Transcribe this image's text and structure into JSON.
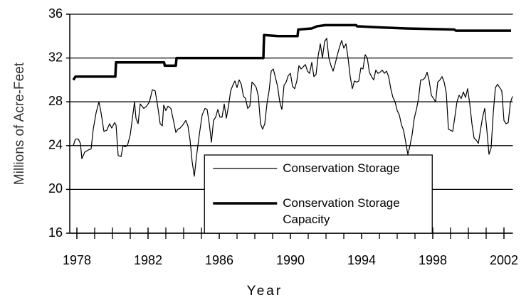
{
  "chart_data": {
    "type": "line",
    "xlabel": "Year",
    "ylabel": "Millions of Acre-Feet",
    "xlim": [
      1977.6,
      2002.5
    ],
    "xticks": [
      1978,
      1982,
      1986,
      1990,
      1994,
      1998,
      2002
    ],
    "xminorticks": [
      1979,
      1980,
      1981,
      1983,
      1984,
      1985,
      1987,
      1988,
      1989,
      1991,
      1992,
      1993,
      1995,
      1996,
      1997,
      1999,
      2000,
      2001
    ],
    "ylim": [
      16,
      36
    ],
    "yticks": [
      16,
      20,
      24,
      28,
      32,
      36
    ],
    "grid": true,
    "legend": "bottom-center",
    "series": [
      {
        "name": "Conservation Storage",
        "color": "#000000",
        "x": [
          1977.8,
          1977.92,
          1978.08,
          1978.2,
          1978.28,
          1978.44,
          1978.64,
          1978.8,
          1978.92,
          1979.08,
          1979.24,
          1979.36,
          1979.52,
          1979.68,
          1979.84,
          1979.96,
          1980.12,
          1980.2,
          1980.32,
          1980.48,
          1980.6,
          1980.72,
          1980.84,
          1981.0,
          1981.24,
          1981.32,
          1981.44,
          1981.56,
          1981.76,
          1981.92,
          1982.08,
          1982.24,
          1982.4,
          1982.56,
          1982.68,
          1982.8,
          1982.88,
          1983.0,
          1983.12,
          1983.28,
          1983.44,
          1983.56,
          1983.68,
          1983.8,
          1983.96,
          1984.12,
          1984.24,
          1984.36,
          1984.48,
          1984.6,
          1984.72,
          1984.88,
          1985.04,
          1985.2,
          1985.32,
          1985.44,
          1985.56,
          1985.68,
          1985.8,
          1985.92,
          1986.04,
          1986.16,
          1986.28,
          1986.4,
          1986.52,
          1986.64,
          1986.76,
          1986.88,
          1987.0,
          1987.12,
          1987.24,
          1987.36,
          1987.48,
          1987.6,
          1987.72,
          1987.84,
          1987.96,
          1988.08,
          1988.2,
          1988.32,
          1988.44,
          1988.56,
          1988.68,
          1988.8,
          1988.92,
          1989.04,
          1989.16,
          1989.28,
          1989.4,
          1989.52,
          1989.64,
          1989.76,
          1989.88,
          1990.0,
          1990.12,
          1990.24,
          1990.36,
          1990.48,
          1990.6,
          1990.72,
          1990.84,
          1990.96,
          1991.08,
          1991.2,
          1991.32,
          1991.44,
          1991.56,
          1991.68,
          1991.8,
          1991.92,
          1992.04,
          1992.16,
          1992.28,
          1992.4,
          1992.52,
          1992.64,
          1992.76,
          1992.88,
          1993.0,
          1993.12,
          1993.24,
          1993.36,
          1993.48,
          1993.6,
          1993.72,
          1993.84,
          1993.96,
          1994.08,
          1994.2,
          1994.32,
          1994.44,
          1994.56,
          1994.68,
          1994.8,
          1994.92,
          1995.04,
          1995.16,
          1995.28,
          1995.4,
          1995.52,
          1995.64,
          1995.76,
          1995.88,
          1996.0,
          1996.12,
          1996.24,
          1996.36,
          1996.48,
          1996.6,
          1996.72,
          1996.84,
          1996.96,
          1997.08,
          1997.2,
          1997.32,
          1997.44,
          1997.56,
          1997.68,
          1997.8,
          1997.92,
          1998.04,
          1998.16,
          1998.28,
          1998.4,
          1998.52,
          1998.64,
          1998.76,
          1998.88,
          1999.0,
          1999.12,
          1999.24,
          1999.36,
          1999.48,
          1999.6,
          1999.72,
          1999.84,
          1999.96,
          2000.08,
          2000.2,
          2000.32,
          2000.44,
          2000.56,
          2000.68,
          2000.8,
          2000.92,
          2001.04,
          2001.16,
          2001.28,
          2001.4,
          2001.52,
          2001.64,
          2001.76,
          2001.88,
          2002.0,
          2002.12,
          2002.24,
          2002.36,
          2002.48
        ],
        "values": [
          24.0,
          24.6,
          24.6,
          24.2,
          22.8,
          23.4,
          23.6,
          23.7,
          25.5,
          27.0,
          28.0,
          27.0,
          25.3,
          25.4,
          26.0,
          25.6,
          26.1,
          25.9,
          23.1,
          23.0,
          24.0,
          23.9,
          24.0,
          25.0,
          28.0,
          26.5,
          26.0,
          27.8,
          27.4,
          27.6,
          28.0,
          29.1,
          29.0,
          27.4,
          26.0,
          25.8,
          27.7,
          27.2,
          27.6,
          27.4,
          26.2,
          25.2,
          25.5,
          25.6,
          25.9,
          26.3,
          25.8,
          24.5,
          22.5,
          21.2,
          23.0,
          25.0,
          26.8,
          27.4,
          27.3,
          26.0,
          24.3,
          26.3,
          26.6,
          27.3,
          26.6,
          26.6,
          27.8,
          26.5,
          27.6,
          29.0,
          29.5,
          29.9,
          29.3,
          30.0,
          29.6,
          28.5,
          28.3,
          27.4,
          27.6,
          29.8,
          29.6,
          29.3,
          28.5,
          26.0,
          25.5,
          26.0,
          27.8,
          29.0,
          30.8,
          31.0,
          30.2,
          29.4,
          28.0,
          27.3,
          29.5,
          29.8,
          30.4,
          30.6,
          29.4,
          29.2,
          29.9,
          31.3,
          31.0,
          31.2,
          31.4,
          30.8,
          30.6,
          31.6,
          30.3,
          30.5,
          32.2,
          33.3,
          32.0,
          33.5,
          33.8,
          32.0,
          31.3,
          30.8,
          31.5,
          32.3,
          33.0,
          33.6,
          32.9,
          33.3,
          32.0,
          30.3,
          29.2,
          29.9,
          29.8,
          29.9,
          31.1,
          31.0,
          32.3,
          32.0,
          30.7,
          30.3,
          30.0,
          30.9,
          30.6,
          30.7,
          30.9,
          30.6,
          30.8,
          30.3,
          29.2,
          28.4,
          28.0,
          27.2,
          26.8,
          25.9,
          25.4,
          24.3,
          23.2,
          24.0,
          25.0,
          26.5,
          27.3,
          28.3,
          30.0,
          30.0,
          30.2,
          30.7,
          29.9,
          28.6,
          28.3,
          28.0,
          29.8,
          30.0,
          30.3,
          29.8,
          28.8,
          25.5,
          25.4,
          25.3,
          26.6,
          28.0,
          28.6,
          28.3,
          28.9,
          28.4,
          29.2,
          27.8,
          26.0,
          24.7,
          24.5,
          24.2,
          25.4,
          26.6,
          27.4,
          25.4,
          23.2,
          23.8,
          27.0,
          29.3,
          29.6,
          29.3,
          29.0,
          26.3,
          26.0,
          26.1,
          27.9,
          28.5
        ]
      },
      {
        "name": "Conservation Storage Capacity",
        "color": "#000000",
        "x": [
          1977.8,
          1977.92,
          1980.16,
          1980.2,
          1982.9,
          1982.94,
          1983.56,
          1983.6,
          1988.48,
          1988.52,
          1989.3,
          1990.4,
          1990.44,
          1991.2,
          1991.5,
          1991.96,
          1993.7,
          1993.74,
          1995.0,
          1996.5,
          1999.2,
          1999.3,
          2002.4
        ],
        "values": [
          30.0,
          30.3,
          30.3,
          31.6,
          31.6,
          31.3,
          31.3,
          32.0,
          32.0,
          34.1,
          34.0,
          34.0,
          34.6,
          34.7,
          34.9,
          35.0,
          35.0,
          34.9,
          34.8,
          34.7,
          34.6,
          34.5,
          34.5
        ]
      }
    ]
  }
}
